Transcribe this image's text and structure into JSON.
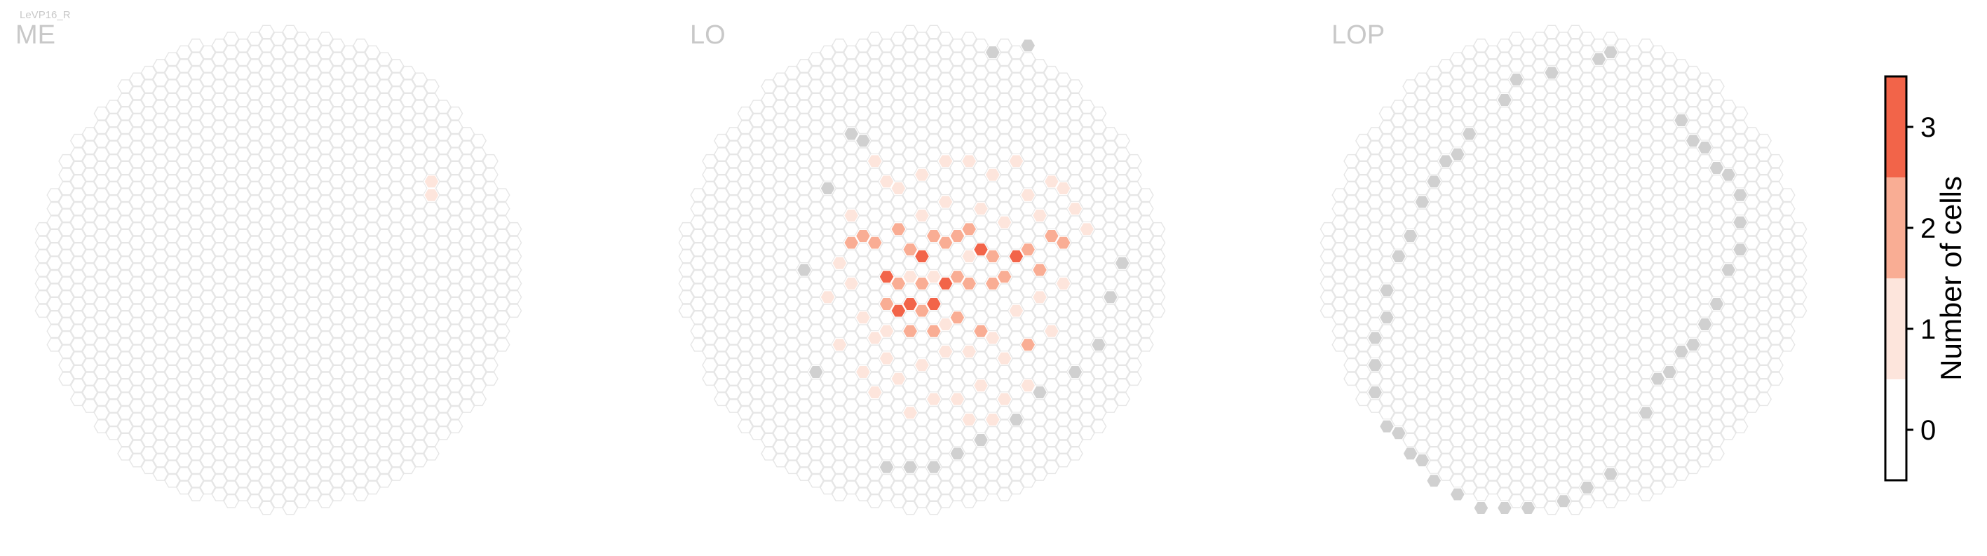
{
  "chart_data": {
    "type": "heatmap",
    "subtype": "hexagonal column grid",
    "cell_type_label": "LeVP16_R",
    "colors": {
      "empty_outline": "#e6e6e6",
      "empty_fill": "#ffffff",
      "out_of_roi_fill": "#d0d0d0",
      "levels": [
        "#ffffff",
        "#fde5dc",
        "#f9ad94",
        "#f26449"
      ]
    },
    "colorbar": {
      "label": "Number of cells",
      "ticks": [
        "0",
        "1",
        "2",
        "3"
      ],
      "range": [
        -0.5,
        3.5
      ]
    },
    "panels": [
      {
        "name": "ME",
        "cells": [
          {
            "q": 13,
            "r": -7,
            "v": 1
          },
          {
            "q": 13,
            "r": -6,
            "v": 1
          }
        ],
        "grey_cells": []
      },
      {
        "name": "LO",
        "cells": [
          {
            "q": -3,
            "r": 0,
            "v": 3
          },
          {
            "q": 0,
            "r": -1,
            "v": 3
          },
          {
            "q": 2,
            "r": 1,
            "v": 3
          },
          {
            "q": -1,
            "r": 2,
            "v": 3
          },
          {
            "q": 5,
            "r": -2,
            "v": 3
          },
          {
            "q": 8,
            "r": -1,
            "v": 3
          },
          {
            "q": 1,
            "r": 2,
            "v": 3
          },
          {
            "q": -2,
            "r": 3,
            "v": 3
          },
          {
            "q": -5,
            "r": -3,
            "v": 2
          },
          {
            "q": -4,
            "r": -2,
            "v": 2
          },
          {
            "q": -2,
            "r": -3,
            "v": 2
          },
          {
            "q": -1,
            "r": -2,
            "v": 2
          },
          {
            "q": 1,
            "r": -3,
            "v": 2
          },
          {
            "q": 3,
            "r": -3,
            "v": 2
          },
          {
            "q": 2,
            "r": -2,
            "v": 2
          },
          {
            "q": 4,
            "r": -3,
            "v": 2
          },
          {
            "q": 6,
            "r": -1,
            "v": 2
          },
          {
            "q": 7,
            "r": 0,
            "v": 2
          },
          {
            "q": 9,
            "r": -2,
            "v": 2
          },
          {
            "q": 10,
            "r": 0,
            "v": 2
          },
          {
            "q": 11,
            "r": -3,
            "v": 2
          },
          {
            "q": -2,
            "r": 1,
            "v": 2
          },
          {
            "q": 0,
            "r": 1,
            "v": 2
          },
          {
            "q": 3,
            "r": 0,
            "v": 2
          },
          {
            "q": -3,
            "r": 2,
            "v": 2
          },
          {
            "q": 4,
            "r": 1,
            "v": 2
          },
          {
            "q": -1,
            "r": 4,
            "v": 2
          },
          {
            "q": 1,
            "r": 4,
            "v": 2
          },
          {
            "q": 3,
            "r": 3,
            "v": 2
          },
          {
            "q": 6,
            "r": 1,
            "v": 2
          },
          {
            "q": 9,
            "r": 5,
            "v": 2
          },
          {
            "q": -6,
            "r": -2,
            "v": 2
          },
          {
            "q": 12,
            "r": -2,
            "v": 2
          },
          {
            "q": 5,
            "r": 4,
            "v": 2
          },
          {
            "q": 0,
            "r": 3,
            "v": 2
          },
          {
            "q": -4,
            "r": -8,
            "v": 1
          },
          {
            "q": -3,
            "r": -7,
            "v": 1
          },
          {
            "q": -2,
            "r": -6,
            "v": 1
          },
          {
            "q": 0,
            "r": -7,
            "v": 1
          },
          {
            "q": 2,
            "r": -8,
            "v": 1
          },
          {
            "q": 4,
            "r": -8,
            "v": 1
          },
          {
            "q": 6,
            "r": -7,
            "v": 1
          },
          {
            "q": 8,
            "r": -8,
            "v": 1
          },
          {
            "q": 9,
            "r": -6,
            "v": 1
          },
          {
            "q": 11,
            "r": -7,
            "v": 1
          },
          {
            "q": 12,
            "r": -6,
            "v": 1
          },
          {
            "q": -6,
            "r": -4,
            "v": 1
          },
          {
            "q": -7,
            "r": -1,
            "v": 1
          },
          {
            "q": -6,
            "r": 1,
            "v": 1
          },
          {
            "q": -5,
            "r": 3,
            "v": 1
          },
          {
            "q": -4,
            "r": 5,
            "v": 1
          },
          {
            "q": -3,
            "r": 6,
            "v": 1
          },
          {
            "q": -2,
            "r": 8,
            "v": 1
          },
          {
            "q": 0,
            "r": 7,
            "v": 1
          },
          {
            "q": 2,
            "r": 6,
            "v": 1
          },
          {
            "q": 4,
            "r": 6,
            "v": 1
          },
          {
            "q": 6,
            "r": 5,
            "v": 1
          },
          {
            "q": 8,
            "r": 3,
            "v": 1
          },
          {
            "q": 10,
            "r": 2,
            "v": 1
          },
          {
            "q": 12,
            "r": 1,
            "v": 1
          },
          {
            "q": 11,
            "r": 4,
            "v": 1
          },
          {
            "q": 7,
            "r": 6,
            "v": 1
          },
          {
            "q": 5,
            "r": 8,
            "v": 1
          },
          {
            "q": 3,
            "r": 9,
            "v": 1
          },
          {
            "q": 1,
            "r": 9,
            "v": 1
          },
          {
            "q": -1,
            "r": 10,
            "v": 1
          },
          {
            "q": -4,
            "r": 9,
            "v": 1
          },
          {
            "q": -5,
            "r": 7,
            "v": 1
          },
          {
            "q": -7,
            "r": 5,
            "v": 1
          },
          {
            "q": -8,
            "r": 2,
            "v": 1
          },
          {
            "q": 0,
            "r": -4,
            "v": 1
          },
          {
            "q": 2,
            "r": -5,
            "v": 1
          },
          {
            "q": 5,
            "r": -5,
            "v": 1
          },
          {
            "q": 7,
            "r": -4,
            "v": 1
          },
          {
            "q": 10,
            "r": -4,
            "v": 1
          },
          {
            "q": 4,
            "r": -1,
            "v": 1
          },
          {
            "q": 1,
            "r": 0,
            "v": 1
          },
          {
            "q": -1,
            "r": 0,
            "v": 1
          },
          {
            "q": 2,
            "r": 4,
            "v": 1
          },
          {
            "q": -3,
            "r": 4,
            "v": 1
          },
          {
            "q": 9,
            "r": 8,
            "v": 1
          },
          {
            "q": 7,
            "r": 9,
            "v": 1
          },
          {
            "q": 6,
            "r": 11,
            "v": 1
          },
          {
            "q": 4,
            "r": 11,
            "v": 1
          },
          {
            "q": 13,
            "r": -5,
            "v": 1
          },
          {
            "q": 14,
            "r": -3,
            "v": 1
          }
        ],
        "grey_cells": [
          {
            "q": 6,
            "r": -16
          },
          {
            "q": 9,
            "r": -17
          },
          {
            "q": -6,
            "r": -10
          },
          {
            "q": -5,
            "r": -10
          },
          {
            "q": -8,
            "r": -6
          },
          {
            "q": -10,
            "r": 0
          },
          {
            "q": -9,
            "r": 7
          },
          {
            "q": 17,
            "r": -1
          },
          {
            "q": 16,
            "r": 2
          },
          {
            "q": 15,
            "r": 5
          },
          {
            "q": 13,
            "r": 7
          },
          {
            "q": 10,
            "r": 9
          },
          {
            "q": 8,
            "r": 11
          },
          {
            "q": 5,
            "r": 12
          },
          {
            "q": 3,
            "r": 13
          },
          {
            "q": 1,
            "r": 14
          },
          {
            "q": -1,
            "r": 14
          },
          {
            "q": -3,
            "r": 14
          }
        ]
      },
      {
        "name": "LOP",
        "cells": [],
        "grey_cells": [
          {
            "q": -5,
            "r": -13
          },
          {
            "q": -4,
            "r": -14
          },
          {
            "q": -1,
            "r": -15
          },
          {
            "q": 3,
            "r": -16
          },
          {
            "q": 4,
            "r": -16
          },
          {
            "q": -8,
            "r": -10
          },
          {
            "q": -9,
            "r": -9
          },
          {
            "q": -10,
            "r": -8
          },
          {
            "q": -11,
            "r": -7
          },
          {
            "q": -12,
            "r": -5
          },
          {
            "q": -13,
            "r": -3
          },
          {
            "q": -14,
            "r": -1
          },
          {
            "q": -15,
            "r": 1
          },
          {
            "q": -15,
            "r": 3
          },
          {
            "q": -16,
            "r": 5
          },
          {
            "q": -16,
            "r": 7
          },
          {
            "q": -16,
            "r": 9
          },
          {
            "q": -15,
            "r": 11
          },
          {
            "q": -14,
            "r": 12
          },
          {
            "q": -13,
            "r": 13
          },
          {
            "q": -12,
            "r": 14
          },
          {
            "q": -11,
            "r": 15
          },
          {
            "q": -9,
            "r": 16
          },
          {
            "q": -7,
            "r": 17
          },
          {
            "q": -5,
            "r": 17
          },
          {
            "q": -3,
            "r": 17
          },
          {
            "q": 0,
            "r": 17
          },
          {
            "q": 2,
            "r": 16
          },
          {
            "q": 4,
            "r": 15
          },
          {
            "q": 10,
            "r": -11
          },
          {
            "q": 11,
            "r": -10
          },
          {
            "q": 12,
            "r": -9
          },
          {
            "q": 13,
            "r": -8
          },
          {
            "q": 14,
            "r": -7
          },
          {
            "q": 15,
            "r": -6
          },
          {
            "q": 15,
            "r": -4
          },
          {
            "q": 15,
            "r": -2
          },
          {
            "q": 14,
            "r": 0
          },
          {
            "q": 13,
            "r": 2
          },
          {
            "q": 12,
            "r": 4
          },
          {
            "q": 11,
            "r": 5
          },
          {
            "q": 10,
            "r": 6
          },
          {
            "q": 9,
            "r": 7
          },
          {
            "q": 8,
            "r": 8
          },
          {
            "q": 7,
            "r": 10
          }
        ]
      }
    ]
  }
}
